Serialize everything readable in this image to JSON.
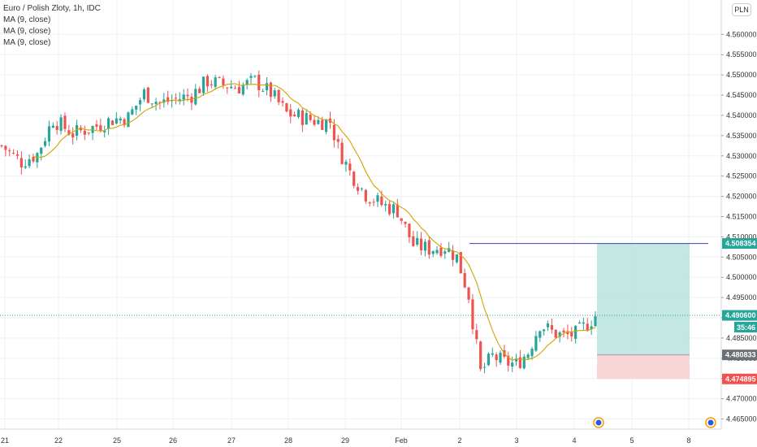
{
  "legend": {
    "title": "Euro / Polish Zloty, 1h, IDC",
    "indicators": [
      "MA (9, close)",
      "MA (9, close)",
      "MA (9, close)"
    ]
  },
  "currency_button": "PLN",
  "colors": {
    "up": "#26a69a",
    "down": "#ef5350",
    "ma": "#d4a200",
    "target_zone": "#b2dfdb",
    "stop_zone": "#f8cfcf",
    "hline": "#3f3fb8",
    "grid": "#eef0f3"
  },
  "chart_data": {
    "type": "candlestick",
    "x_ticks": [
      "21",
      "22",
      "25",
      "26",
      "27",
      "28",
      "29",
      "Feb",
      "2",
      "3",
      "4",
      "5",
      "8"
    ],
    "y_ticks": [
      "4.560000",
      "4.555000",
      "4.550000",
      "4.545000",
      "4.540000",
      "4.535000",
      "4.530000",
      "4.525000",
      "4.520000",
      "4.515000",
      "4.510000",
      "4.505000",
      "4.500000",
      "4.495000",
      "4.490000",
      "4.485000",
      "4.480000",
      "4.475000",
      "4.470000",
      "4.465000"
    ],
    "y_range": [
      4.4625,
      4.5685
    ],
    "grid": true,
    "price_path": [
      [
        0,
        4.5325
      ],
      [
        5,
        4.5285
      ],
      [
        9,
        4.5305
      ],
      [
        13,
        4.539
      ],
      [
        18,
        4.5355
      ],
      [
        23,
        4.537
      ],
      [
        28,
        4.539
      ],
      [
        32,
        4.5395
      ],
      [
        36,
        4.5455
      ],
      [
        40,
        4.543
      ],
      [
        44,
        4.544
      ],
      [
        48,
        4.545
      ],
      [
        52,
        4.5485
      ],
      [
        56,
        4.5475
      ],
      [
        60,
        4.547
      ],
      [
        64,
        4.5485
      ],
      [
        68,
        4.5455
      ],
      [
        72,
        4.5405
      ],
      [
        76,
        4.5395
      ],
      [
        80,
        4.5385
      ],
      [
        83,
        4.5385
      ],
      [
        85,
        4.532
      ],
      [
        88,
        4.526
      ],
      [
        92,
        4.5205
      ],
      [
        96,
        4.518
      ],
      [
        100,
        4.5165
      ],
      [
        104,
        4.508
      ],
      [
        108,
        4.507
      ],
      [
        112,
        4.5075
      ],
      [
        115,
        4.505
      ],
      [
        118,
        4.4955
      ],
      [
        121,
        4.4765
      ],
      [
        124,
        4.4805
      ],
      [
        127,
        4.479
      ],
      [
        130,
        4.4785
      ],
      [
        133,
        4.4815
      ],
      [
        136,
        4.4885
      ],
      [
        139,
        4.4865
      ],
      [
        142,
        4.4855
      ],
      [
        145,
        4.486
      ],
      [
        148,
        4.4885
      ],
      [
        150,
        4.4905
      ]
    ],
    "moving_average": "MA (9, close)",
    "position": {
      "entry": 4.480833,
      "target": 4.508354,
      "stop": 4.474895
    },
    "horizontal_line": 4.508354,
    "last_price": 4.4906,
    "countdown": "35:46",
    "price_tags": [
      {
        "value": 4.508354,
        "label": "4.508354",
        "color": "#26a69a"
      },
      {
        "value": 4.4906,
        "label": "4.490600",
        "color": "#26a69a"
      },
      {
        "value": 4.480833,
        "label": "4.480833",
        "color": "#6b6f76"
      },
      {
        "value": 4.474895,
        "label": "4.474895",
        "color": "#ef5350"
      }
    ]
  }
}
